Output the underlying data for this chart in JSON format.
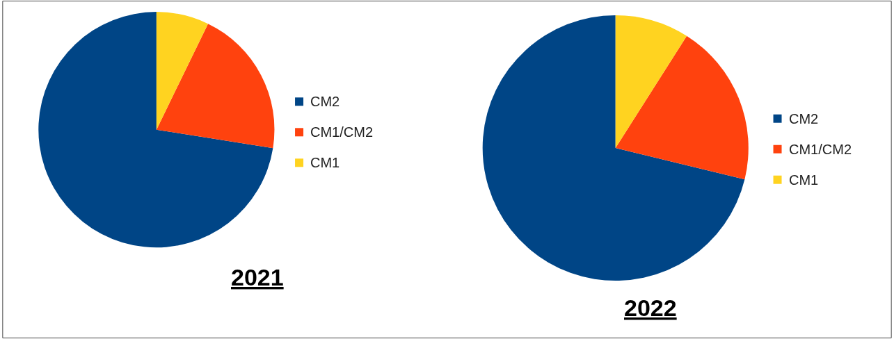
{
  "chart_data": [
    {
      "type": "pie",
      "title": "2021",
      "categories": [
        "CM2",
        "CM1/CM2",
        "CM1"
      ],
      "values": [
        72.5,
        20.3,
        7.2
      ],
      "colors": [
        "#004586",
        "#ff420e",
        "#ffd320"
      ],
      "legend": "right"
    },
    {
      "type": "pie",
      "title": "2022",
      "categories": [
        "CM2",
        "CM1/CM2",
        "CM1"
      ],
      "values": [
        71.2,
        19.8,
        9.0
      ],
      "colors": [
        "#004586",
        "#ff420e",
        "#ffd320"
      ],
      "legend": "right"
    }
  ]
}
